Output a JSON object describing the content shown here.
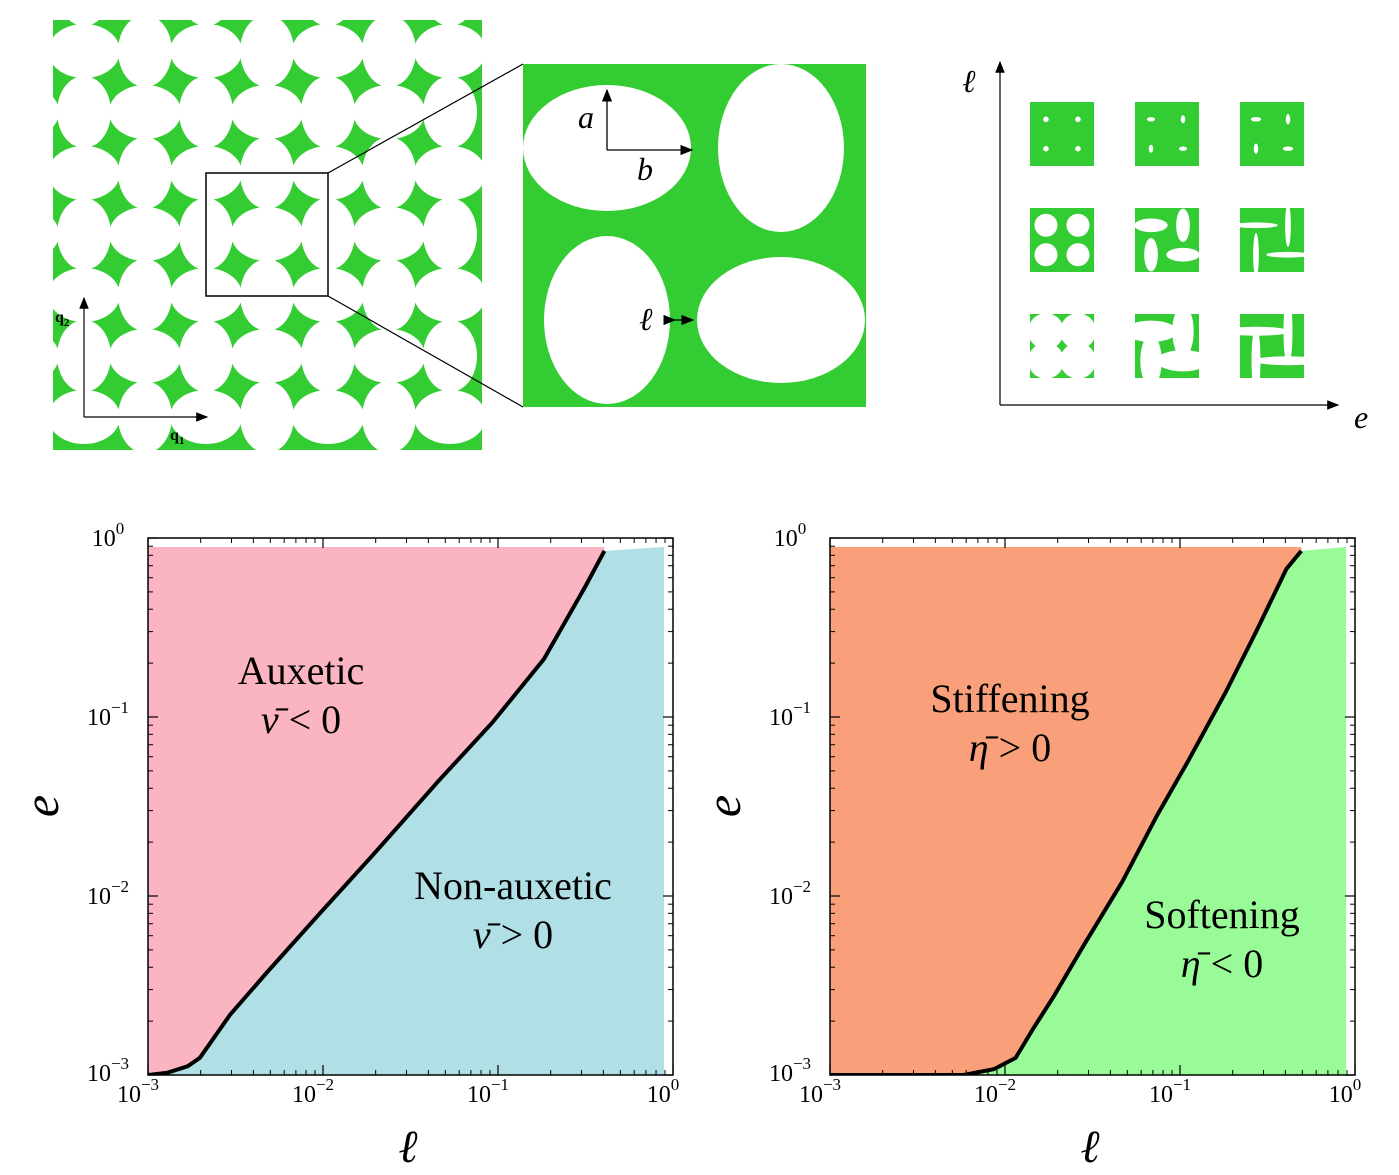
{
  "colors": {
    "green": "#33cc33",
    "pink": "#fbb4c1",
    "lightblue": "#b0e0e6",
    "salmon": "#f9a07a",
    "palegreen": "#98fb98",
    "frontier": "#000000"
  },
  "schematic": {
    "lattice": {
      "q1": "q",
      "q1_sub": "1",
      "q2": "q",
      "q2_sub": "2"
    },
    "unit_cell": {
      "a": "a",
      "b": "b",
      "ell": "ℓ"
    },
    "design_space": {
      "y_axis": "ℓ",
      "x_axis": "e"
    }
  },
  "chart_data": [
    {
      "type": "area",
      "xlabel": "ℓ",
      "ylabel": "e",
      "x_scale": "log",
      "y_scale": "log",
      "xlim": [
        0.001,
        1
      ],
      "ylim": [
        0.001,
        1
      ],
      "x_ticks": [
        "10",
        "10",
        "10",
        "10"
      ],
      "x_tick_exponents": [
        "−3",
        "−2",
        "−1",
        "0"
      ],
      "y_ticks": [
        "10",
        "10",
        "10",
        "10"
      ],
      "y_tick_exponents": [
        "−3",
        "−2",
        "−1",
        "0"
      ],
      "regions": [
        {
          "line1": "Auxetic",
          "line2_symbol": "ν̄",
          "line2_rest": " < 0",
          "color": "#fbb4c1",
          "side": "upper-left"
        },
        {
          "line1": "Non-auxetic",
          "line2_symbol": "ν̄",
          "line2_rest": " > 0",
          "color": "#b0e0e6",
          "side": "lower-right"
        }
      ],
      "boundary": {
        "x": [
          0.001,
          0.0013,
          0.0017,
          0.002,
          0.003,
          0.005,
          0.01,
          0.02,
          0.05,
          0.1,
          0.2,
          0.35,
          0.45
        ],
        "y": [
          0.001,
          0.00103,
          0.00112,
          0.00125,
          0.0022,
          0.0039,
          0.0083,
          0.0175,
          0.048,
          0.1,
          0.23,
          0.6,
          0.95
        ]
      }
    },
    {
      "type": "area",
      "xlabel": "ℓ",
      "ylabel": "e",
      "x_scale": "log",
      "y_scale": "log",
      "xlim": [
        0.001,
        1
      ],
      "ylim": [
        0.001,
        1
      ],
      "x_ticks": [
        "10",
        "10",
        "10",
        "10"
      ],
      "x_tick_exponents": [
        "−3",
        "−2",
        "−1",
        "0"
      ],
      "y_ticks": [
        "10",
        "10",
        "10",
        "10"
      ],
      "y_tick_exponents": [
        "−3",
        "−2",
        "−1",
        "0"
      ],
      "regions": [
        {
          "line1": "Stiffening",
          "line2_symbol": "η̄",
          "line2_rest": " > 0",
          "color": "#f9a07a",
          "side": "upper-left"
        },
        {
          "line1": "Softening",
          "line2_symbol": "η̄",
          "line2_rest": " < 0",
          "color": "#98fb98",
          "side": "lower-right"
        }
      ],
      "boundary": {
        "x": [
          0.001,
          0.003,
          0.006,
          0.009,
          0.012,
          0.015,
          0.02,
          0.03,
          0.05,
          0.08,
          0.12,
          0.2,
          0.3,
          0.45,
          0.55
        ],
        "y": [
          0.001,
          0.001,
          0.001,
          0.00108,
          0.00125,
          0.0018,
          0.0028,
          0.0055,
          0.0125,
          0.03,
          0.06,
          0.15,
          0.33,
          0.75,
          0.95
        ]
      }
    }
  ]
}
